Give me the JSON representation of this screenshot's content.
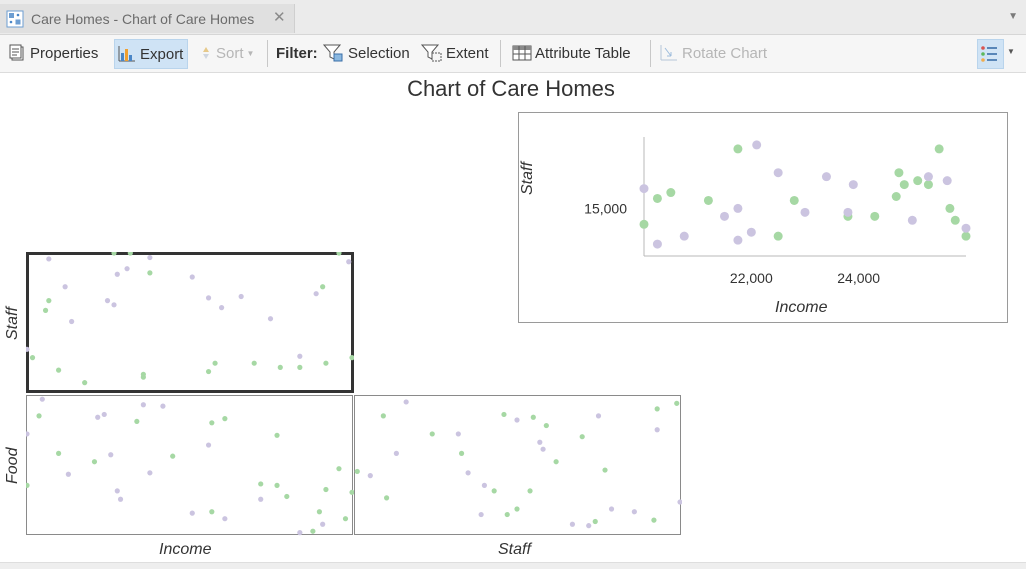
{
  "tab": {
    "title": "Care Homes - Chart of Care Homes",
    "close_glyph": "✕",
    "menu_glyph": "▼"
  },
  "toolbar": {
    "properties_label": "Properties",
    "export_label": "Export",
    "sort_label": "Sort",
    "filter_label": "Filter:",
    "selection_label": "Selection",
    "extent_label": "Extent",
    "attribute_table_label": "Attribute Table",
    "rotate_chart_label": "Rotate Chart"
  },
  "chart": {
    "title": "Chart of Care Homes"
  },
  "colors": {
    "selected": "#a6d8a4",
    "unselected": "#cbc4e0",
    "accent": "#cfe3f5"
  },
  "matrix_labels": {
    "row_staff": "Staff",
    "row_food": "Food",
    "col_income": "Income",
    "col_staff": "Staff"
  },
  "chart_data": {
    "type": "scatter",
    "title": "Chart of Care Homes",
    "xlabel": "Income",
    "ylabel": "Staff",
    "xticks": [
      22000,
      24000
    ],
    "xtick_labels": [
      "22,000",
      "24,000"
    ],
    "yticks": [
      15000
    ],
    "ytick_labels": [
      "15,000"
    ],
    "xlim": [
      20000,
      26000
    ],
    "ylim": [
      13800,
      16800
    ],
    "series": [
      {
        "color": "#a6d8a4",
        "points": [
          [
            20000,
            14600
          ],
          [
            20250,
            15250
          ],
          [
            20500,
            15400
          ],
          [
            21200,
            15200
          ],
          [
            21750,
            16500
          ],
          [
            22500,
            14300
          ],
          [
            22800,
            15200
          ],
          [
            23800,
            14800
          ],
          [
            24300,
            14800
          ],
          [
            24700,
            15300
          ],
          [
            24750,
            15900
          ],
          [
            24850,
            15600
          ],
          [
            25100,
            15700
          ],
          [
            25300,
            15600
          ],
          [
            25500,
            16500
          ],
          [
            25800,
            14700
          ],
          [
            26000,
            14300
          ],
          [
            25700,
            15000
          ]
        ]
      },
      {
        "color": "#cbc4e0",
        "points": [
          [
            20000,
            15500
          ],
          [
            20250,
            14100
          ],
          [
            20750,
            14300
          ],
          [
            21500,
            14800
          ],
          [
            21750,
            15000
          ],
          [
            21750,
            14200
          ],
          [
            22000,
            14400
          ],
          [
            22500,
            15900
          ],
          [
            23000,
            14900
          ],
          [
            23400,
            15800
          ],
          [
            23800,
            14900
          ],
          [
            23900,
            15600
          ],
          [
            25000,
            14700
          ],
          [
            25300,
            15800
          ],
          [
            25650,
            15700
          ],
          [
            26000,
            14500
          ],
          [
            22100,
            16600
          ]
        ]
      }
    ]
  },
  "matrix_data": {
    "staff_vs_income": {
      "selected": [
        [
          0.02,
          0.24
        ],
        [
          0.1,
          0.15
        ],
        [
          0.18,
          0.06
        ],
        [
          0.36,
          0.12
        ],
        [
          0.32,
          1.02
        ],
        [
          0.56,
          0.14
        ],
        [
          0.58,
          0.2
        ],
        [
          0.7,
          0.2
        ],
        [
          0.78,
          0.17
        ],
        [
          0.84,
          0.17
        ],
        [
          0.92,
          0.2
        ],
        [
          0.96,
          1.02
        ],
        [
          1.01,
          0.24
        ],
        [
          0.36,
          0.1
        ],
        [
          0.27,
          1.02
        ],
        [
          0.07,
          0.65
        ],
        [
          0.38,
          0.85
        ],
        [
          0.91,
          0.75
        ],
        [
          0.06,
          0.58
        ]
      ],
      "unselected": [
        [
          0.0,
          0.3
        ],
        [
          0.07,
          0.95
        ],
        [
          0.14,
          0.5
        ],
        [
          0.25,
          0.65
        ],
        [
          0.28,
          0.84
        ],
        [
          0.31,
          0.88
        ],
        [
          0.38,
          0.96
        ],
        [
          0.51,
          0.82
        ],
        [
          0.56,
          0.67
        ],
        [
          0.6,
          0.6
        ],
        [
          0.66,
          0.68
        ],
        [
          0.75,
          0.52
        ],
        [
          0.84,
          0.25
        ],
        [
          0.89,
          0.7
        ],
        [
          0.99,
          0.93
        ],
        [
          0.12,
          0.75
        ],
        [
          0.27,
          0.62
        ]
      ]
    },
    "food_vs_income": {
      "selected": [
        [
          0.0,
          0.35
        ],
        [
          0.1,
          0.58
        ],
        [
          0.04,
          0.85
        ],
        [
          0.21,
          0.52
        ],
        [
          0.34,
          0.81
        ],
        [
          0.45,
          0.56
        ],
        [
          0.57,
          0.16
        ],
        [
          0.61,
          0.83
        ],
        [
          0.72,
          0.36
        ],
        [
          0.77,
          0.35
        ],
        [
          0.8,
          0.27
        ],
        [
          0.9,
          0.16
        ],
        [
          0.92,
          0.32
        ],
        [
          0.98,
          0.11
        ],
        [
          1.0,
          0.3
        ],
        [
          0.88,
          0.02
        ],
        [
          0.96,
          0.47
        ],
        [
          0.77,
          0.71
        ],
        [
          0.57,
          0.8
        ]
      ],
      "unselected": [
        [
          0.0,
          0.72
        ],
        [
          0.05,
          0.97
        ],
        [
          0.13,
          0.43
        ],
        [
          0.22,
          0.84
        ],
        [
          0.26,
          0.57
        ],
        [
          0.28,
          0.31
        ],
        [
          0.29,
          0.25
        ],
        [
          0.38,
          0.44
        ],
        [
          0.42,
          0.92
        ],
        [
          0.51,
          0.15
        ],
        [
          0.56,
          0.64
        ],
        [
          0.61,
          0.11
        ],
        [
          0.72,
          0.25
        ],
        [
          0.84,
          0.01
        ],
        [
          0.91,
          0.07
        ],
        [
          0.24,
          0.86
        ],
        [
          0.36,
          0.93
        ]
      ]
    },
    "food_vs_staff": {
      "selected": [
        [
          0.01,
          0.45
        ],
        [
          0.09,
          0.85
        ],
        [
          0.1,
          0.26
        ],
        [
          0.24,
          0.72
        ],
        [
          0.33,
          0.58
        ],
        [
          0.43,
          0.31
        ],
        [
          0.46,
          0.86
        ],
        [
          0.47,
          0.14
        ],
        [
          0.5,
          0.18
        ],
        [
          0.54,
          0.31
        ],
        [
          0.55,
          0.84
        ],
        [
          0.59,
          0.78
        ],
        [
          0.62,
          0.52
        ],
        [
          0.7,
          0.7
        ],
        [
          0.74,
          0.09
        ],
        [
          0.77,
          0.46
        ],
        [
          0.92,
          0.1
        ],
        [
          0.93,
          0.9
        ],
        [
          0.99,
          0.94
        ]
      ],
      "unselected": [
        [
          0.05,
          0.42
        ],
        [
          0.13,
          0.58
        ],
        [
          0.16,
          0.95
        ],
        [
          0.32,
          0.72
        ],
        [
          0.35,
          0.44
        ],
        [
          0.39,
          0.14
        ],
        [
          0.5,
          0.82
        ],
        [
          0.58,
          0.61
        ],
        [
          0.67,
          0.07
        ],
        [
          0.72,
          0.06
        ],
        [
          0.75,
          0.85
        ],
        [
          0.79,
          0.18
        ],
        [
          0.86,
          0.16
        ],
        [
          0.93,
          0.75
        ],
        [
          1.0,
          0.23
        ],
        [
          0.4,
          0.35
        ],
        [
          0.57,
          0.66
        ]
      ]
    }
  }
}
